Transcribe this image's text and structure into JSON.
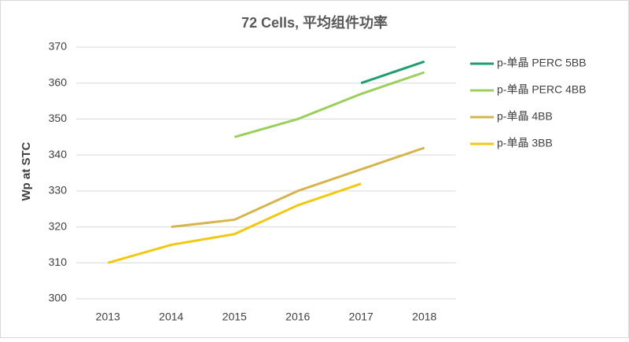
{
  "chart_data": {
    "type": "line",
    "title": "72 Cells, 平均组件功率",
    "y_label": "Wp at STC",
    "categories": [
      "2013",
      "2014",
      "2015",
      "2016",
      "2017",
      "2018"
    ],
    "series": [
      {
        "name": "p-单晶 PERC 5BB",
        "color": "#1f9e6e",
        "values": [
          null,
          null,
          null,
          null,
          360,
          366
        ]
      },
      {
        "name": "p-单晶 PERC 4BB",
        "color": "#9bcf5c",
        "values": [
          null,
          null,
          345,
          350,
          357,
          363
        ]
      },
      {
        "name": "p-单晶 4BB",
        "color": "#d6b44c",
        "values": [
          null,
          320,
          322,
          330,
          336,
          342
        ]
      },
      {
        "name": "p-单晶 3BB",
        "color": "#f2c811",
        "values": [
          310,
          315,
          318,
          326,
          332,
          null
        ]
      }
    ],
    "ylim": [
      300,
      370
    ],
    "yticks": [
      300,
      310,
      320,
      330,
      340,
      350,
      360,
      370
    ],
    "grid": true,
    "legend": "right"
  }
}
